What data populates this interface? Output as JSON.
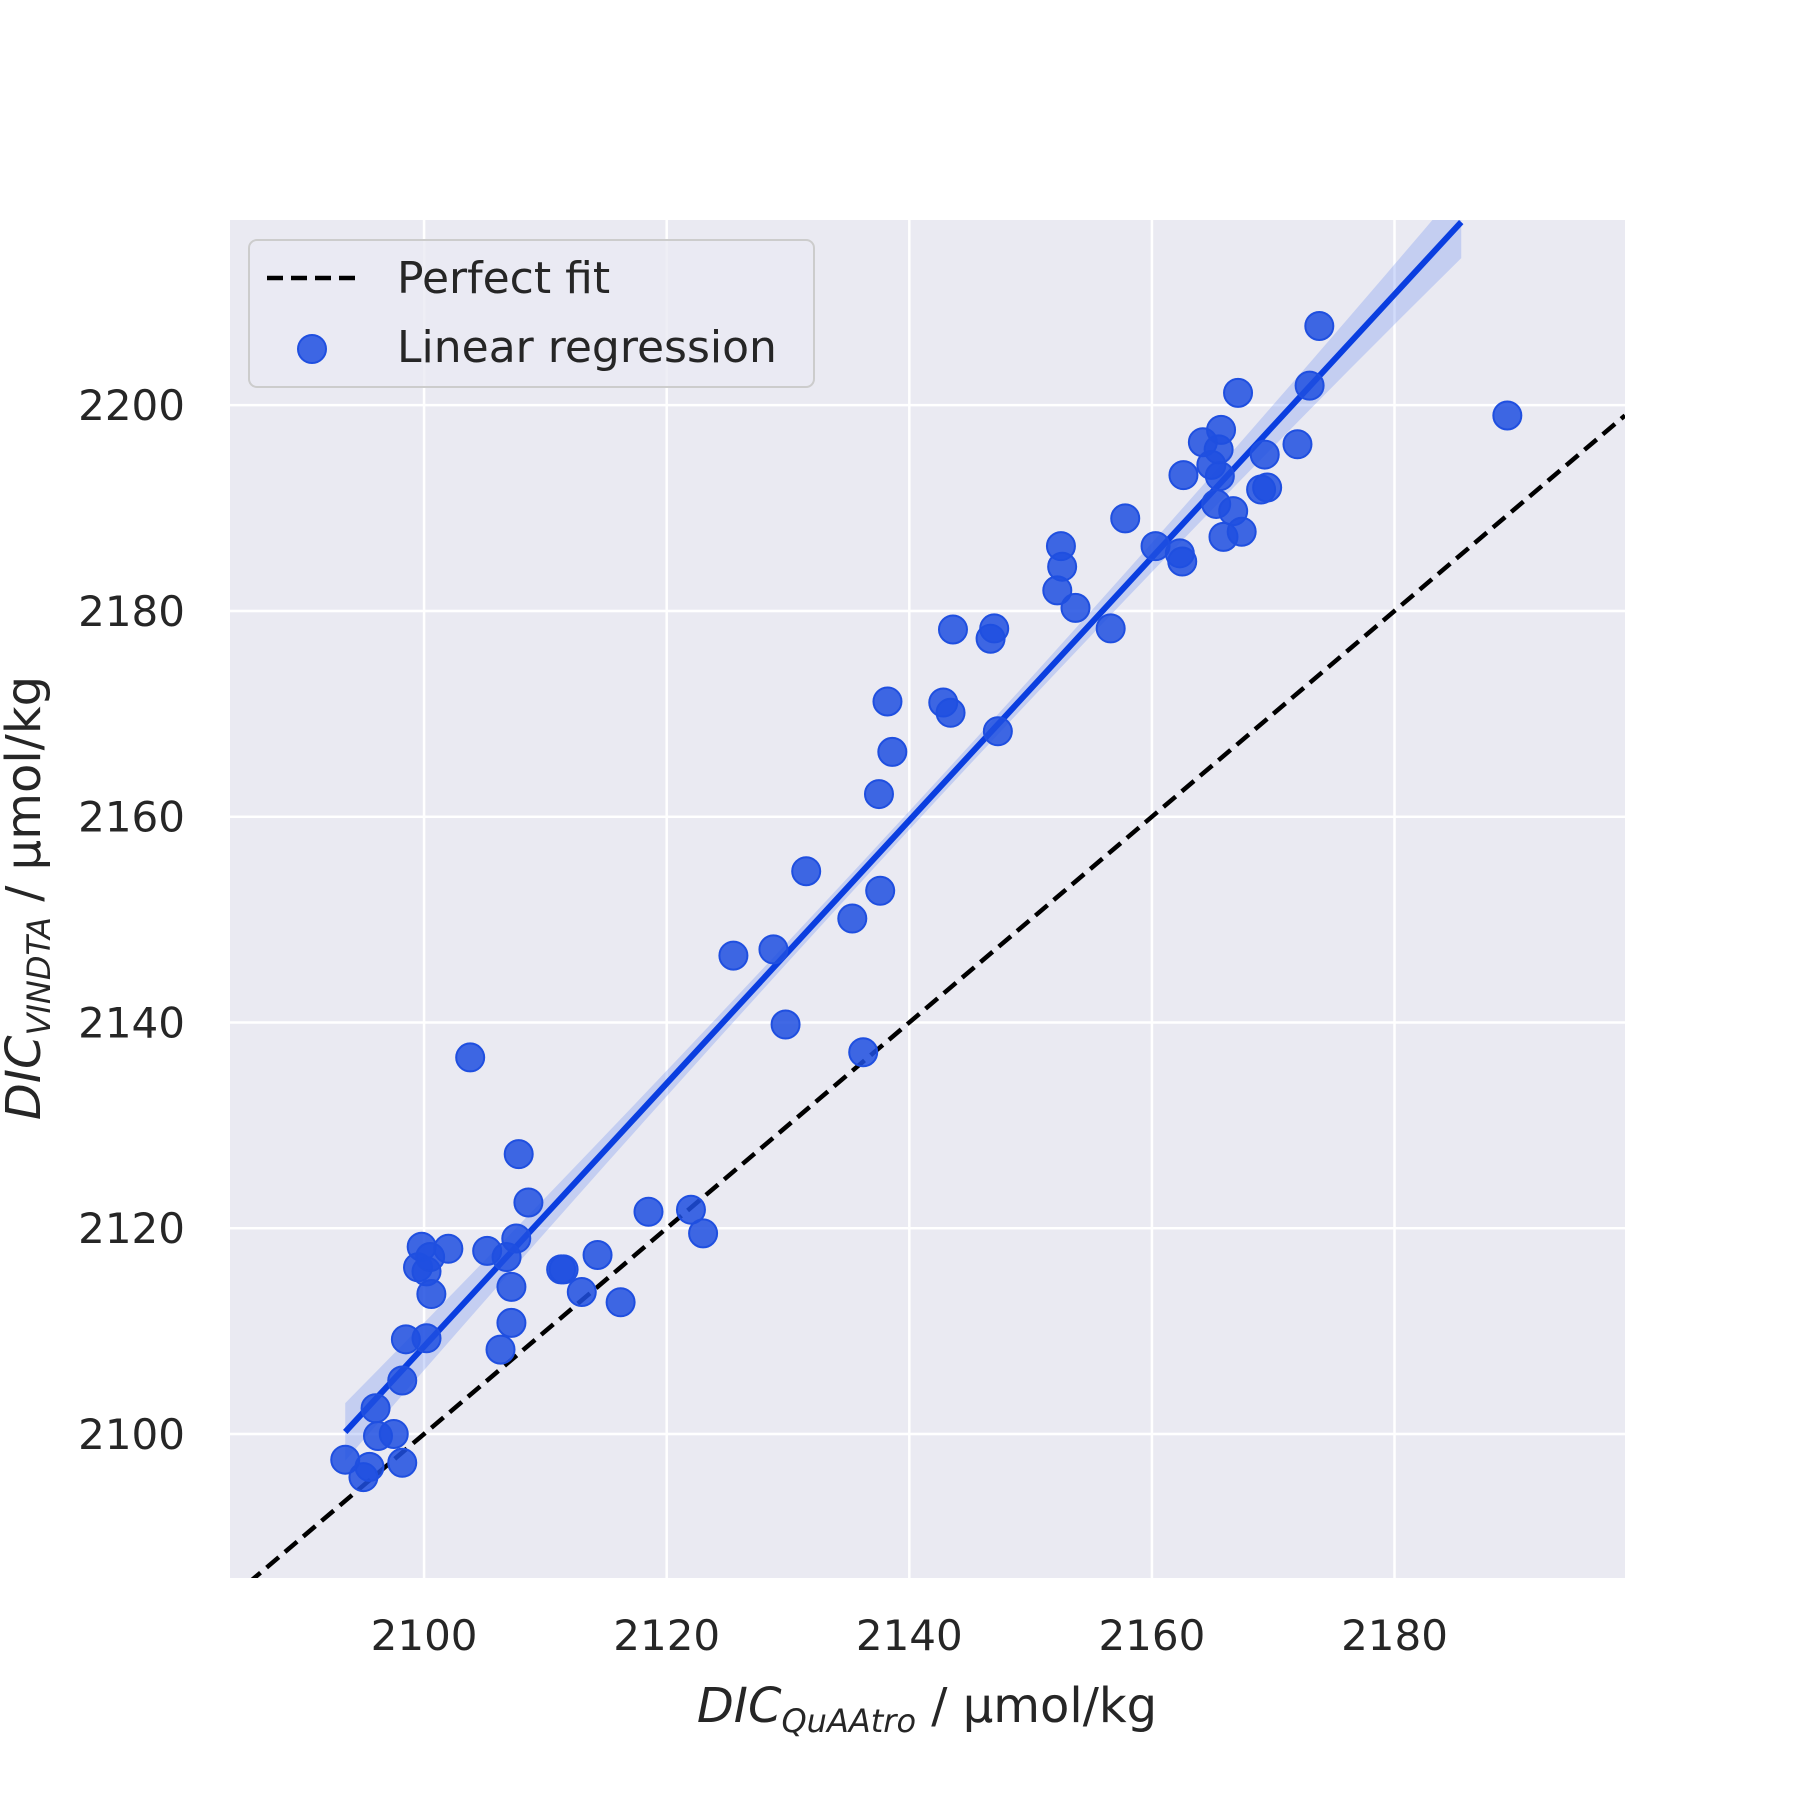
{
  "chart_data": {
    "type": "scatter",
    "xlim": [
      2084,
      2199
    ],
    "ylim": [
      2086,
      2218
    ],
    "xticks": [
      2100,
      2120,
      2140,
      2160,
      2180
    ],
    "yticks": [
      2100,
      2120,
      2140,
      2160,
      2180,
      2200
    ],
    "grid": true,
    "legend_placement": "top-left",
    "xlabel": {
      "main": "DIC",
      "sub": "QuAAtro",
      "unit": " / µmol/kg"
    },
    "ylabel": {
      "main": "DIC",
      "sub": "VINDTA",
      "unit": " / µmol/kg"
    },
    "colors": {
      "points": "#1f4fe0",
      "fit_line": "#0a3ee0",
      "band": "#7f9cf0",
      "identity": "#000000",
      "panel": "#eaeaf2",
      "grid": "#ffffff"
    },
    "series": [
      {
        "name": "Perfect fit",
        "kind": "line",
        "dash": true,
        "x": [
          2084,
          2199
        ],
        "y": [
          2084,
          2199
        ]
      },
      {
        "name": "Linear regression",
        "kind": "scatter",
        "points": [
          [
            2093.5,
            2097.5
          ],
          [
            2095,
            2095.8
          ],
          [
            2095.5,
            2096.8
          ],
          [
            2096,
            2102.5
          ],
          [
            2096.2,
            2099.8
          ],
          [
            2097.5,
            2100
          ],
          [
            2098.2,
            2097.2
          ],
          [
            2098.2,
            2105.2
          ],
          [
            2098.5,
            2109.2
          ],
          [
            2099.5,
            2116.2
          ],
          [
            2099.8,
            2118.2
          ],
          [
            2100.2,
            2109.3
          ],
          [
            2100.2,
            2115.8
          ],
          [
            2100.5,
            2117.2
          ],
          [
            2100.6,
            2113.6
          ],
          [
            2102,
            2118
          ],
          [
            2103.8,
            2136.6
          ],
          [
            2105.2,
            2117.8
          ],
          [
            2106.3,
            2108.2
          ],
          [
            2106.8,
            2117.2
          ],
          [
            2107.2,
            2110.8
          ],
          [
            2107.2,
            2114.3
          ],
          [
            2107.6,
            2119
          ],
          [
            2107.8,
            2127.2
          ],
          [
            2108.6,
            2122.5
          ],
          [
            2111.3,
            2116
          ],
          [
            2111.5,
            2116
          ],
          [
            2113,
            2113.8
          ],
          [
            2114.3,
            2117.4
          ],
          [
            2116.2,
            2112.8
          ],
          [
            2118.5,
            2121.6
          ],
          [
            2122,
            2121.8
          ],
          [
            2123,
            2119.5
          ],
          [
            2125.5,
            2146.5
          ],
          [
            2128.8,
            2147.1
          ],
          [
            2129.8,
            2139.8
          ],
          [
            2131.5,
            2154.7
          ],
          [
            2135.3,
            2150.1
          ],
          [
            2136.2,
            2137.1
          ],
          [
            2137.5,
            2162.2
          ],
          [
            2137.6,
            2152.8
          ],
          [
            2138.2,
            2171.2
          ],
          [
            2138.6,
            2166.3
          ],
          [
            2142.8,
            2171.1
          ],
          [
            2143.4,
            2170.1
          ],
          [
            2143.6,
            2178.2
          ],
          [
            2146.7,
            2177.3
          ],
          [
            2147,
            2178.3
          ],
          [
            2147.3,
            2168.3
          ],
          [
            2152.2,
            2182
          ],
          [
            2152.5,
            2186.3
          ],
          [
            2152.6,
            2184.3
          ],
          [
            2153.7,
            2180.3
          ],
          [
            2156.6,
            2178.3
          ],
          [
            2157.8,
            2189
          ],
          [
            2160.3,
            2186.3
          ],
          [
            2162.3,
            2185.6
          ],
          [
            2162.5,
            2184.8
          ],
          [
            2162.6,
            2193.2
          ],
          [
            2164.2,
            2196.4
          ],
          [
            2164.9,
            2194.2
          ],
          [
            2165.3,
            2190.4
          ],
          [
            2165.5,
            2195.7
          ],
          [
            2165.6,
            2193.1
          ],
          [
            2165.7,
            2197.6
          ],
          [
            2165.9,
            2187.2
          ],
          [
            2166.7,
            2189.7
          ],
          [
            2167.1,
            2201.2
          ],
          [
            2167.4,
            2187.7
          ],
          [
            2169,
            2191.8
          ],
          [
            2169.3,
            2195.2
          ],
          [
            2169.5,
            2192
          ],
          [
            2172,
            2196.2
          ],
          [
            2173,
            2201.9
          ],
          [
            2173.8,
            2207.7
          ],
          [
            2189.3,
            2199
          ]
        ]
      },
      {
        "name": "",
        "kind": "fit",
        "x": [
          2093.5,
          2185.5
        ],
        "y": [
          2100.2,
          2217.8
        ],
        "band": [
          2.8,
          0.9,
          3.5
        ]
      }
    ]
  }
}
